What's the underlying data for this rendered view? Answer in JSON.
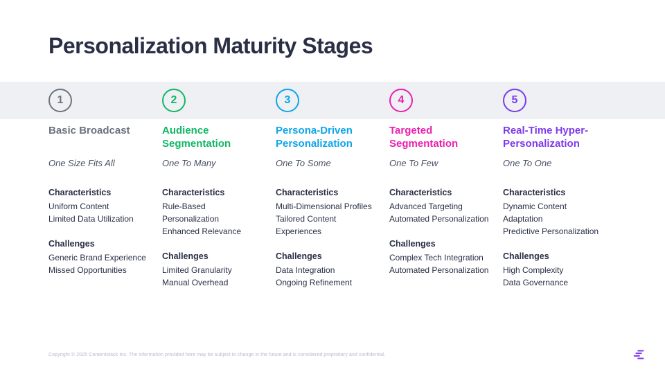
{
  "title": "Personalization Maturity Stages",
  "band_color": "#eef0f4",
  "background_color": "#ffffff",
  "title_color": "#2a2f45",
  "stages": [
    {
      "number": "1",
      "color": "#6b7280",
      "name": "Basic Broadcast",
      "subtitle": "One Size Fits All",
      "characteristics": [
        "Uniform Content",
        "Limited Data Utilization"
      ],
      "challenges": [
        "Generic Brand Experience",
        "Missed Opportunities"
      ]
    },
    {
      "number": "2",
      "color": "#10b763",
      "name": "Audience Segmentation",
      "subtitle": "One To Many",
      "characteristics": [
        "Rule-Based Personalization",
        "Enhanced Relevance"
      ],
      "challenges": [
        "Limited Granularity",
        "Manual Overhead"
      ]
    },
    {
      "number": "3",
      "color": "#0ea5e9",
      "name": "Persona-Driven Personalization",
      "subtitle": "One To Some",
      "characteristics": [
        "Multi-Dimensional Profiles",
        "Tailored Content Experiences"
      ],
      "challenges": [
        "Data Integration",
        "Ongoing Refinement"
      ]
    },
    {
      "number": "4",
      "color": "#ec1fae",
      "name": "Targeted Segmentation",
      "subtitle": "One To Few",
      "characteristics": [
        "Advanced Targeting",
        "Automated Personalization"
      ],
      "challenges": [
        "Complex Tech Integration",
        "Automated Personalization"
      ]
    },
    {
      "number": "5",
      "color": "#7c3aed",
      "name": "Real-Time Hyper-Personalization",
      "subtitle": "One To One",
      "characteristics": [
        "Dynamic Content Adaptation",
        "Predictive Personalization"
      ],
      "challenges": [
        "High Complexity",
        "Data Governance"
      ]
    }
  ],
  "section_labels": {
    "characteristics": "Characteristics",
    "challenges": "Challenges"
  },
  "footer": "Copyright © 2025 Contentstack Inc. The information provided here may be subject to change in the future and is considered proprietary and confidential.",
  "logo_color": "#7c3aed"
}
